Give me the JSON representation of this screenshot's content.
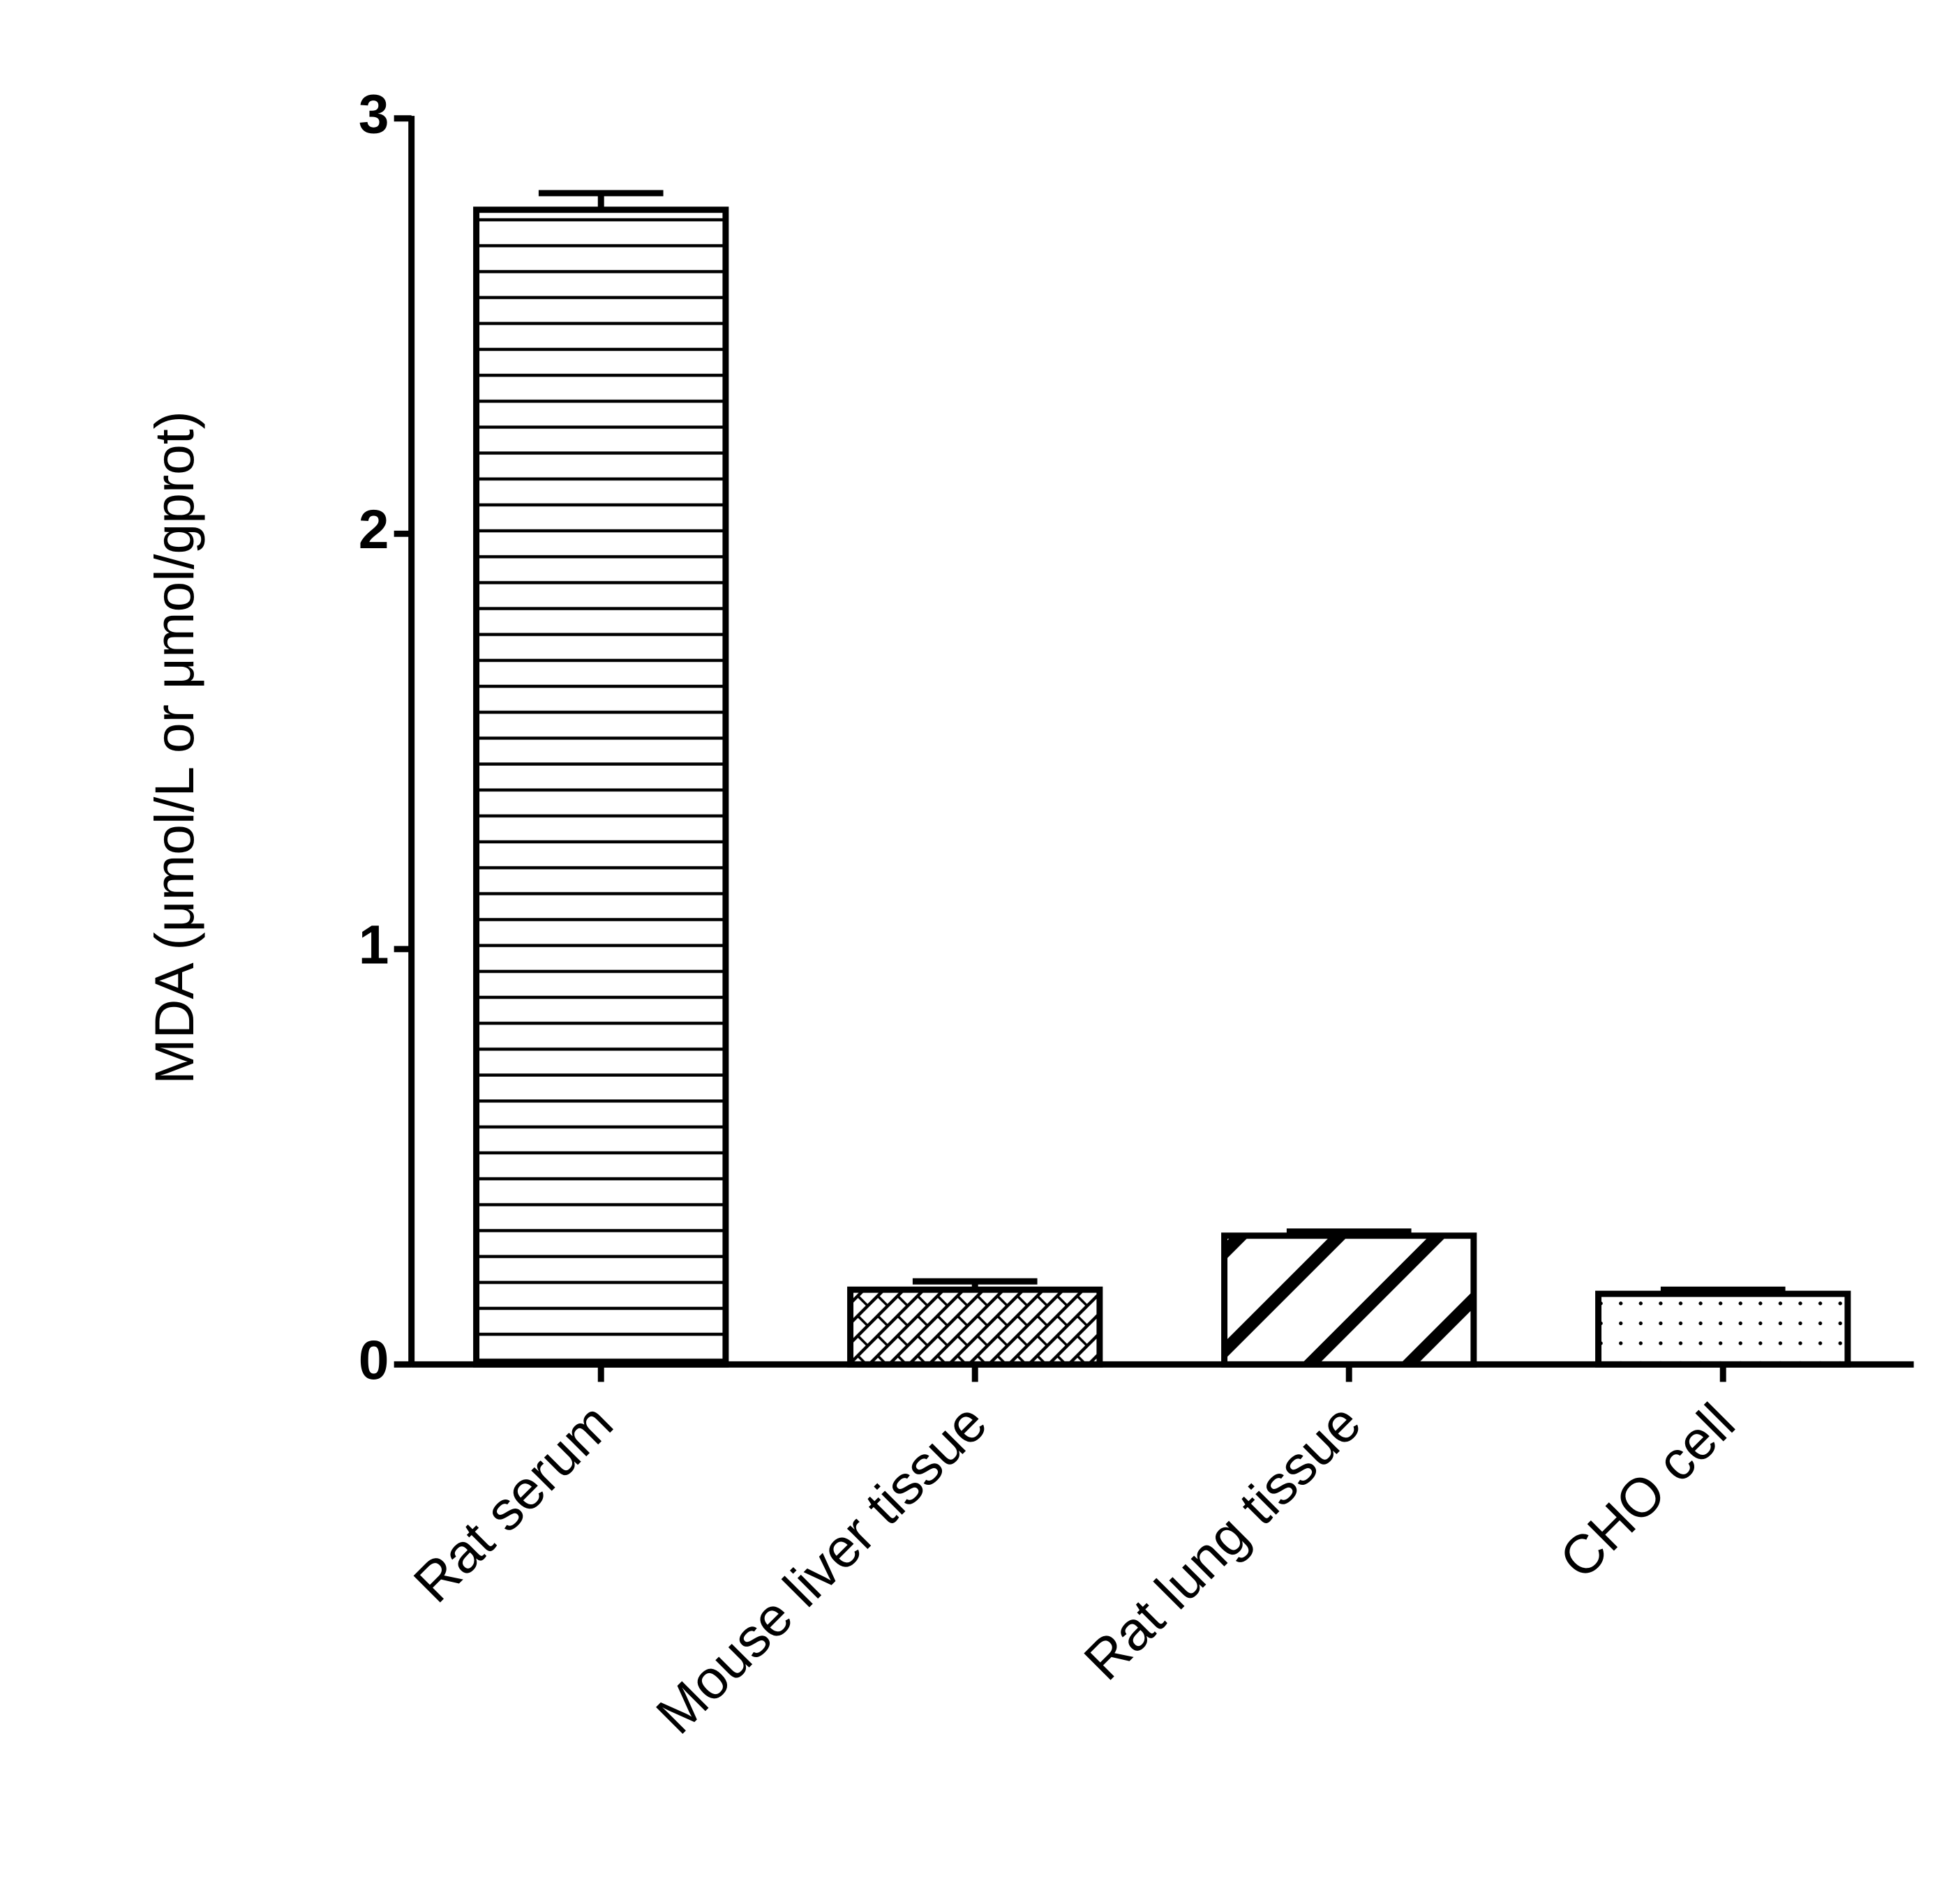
{
  "chart_data": {
    "type": "bar",
    "y_label": "MDA (μmol/L or μmol/gprot)",
    "categories": [
      "Rat serum",
      "Mouse liver tissue",
      "Rat lung tissue",
      "CHO cell"
    ],
    "values": [
      2.78,
      0.18,
      0.31,
      0.17
    ],
    "errors": [
      0.04,
      0.02,
      0.01,
      0.01
    ],
    "fills": [
      "horizontal",
      "crosshatch",
      "diagonal",
      "dots"
    ],
    "color": "#000000",
    "ylim": [
      0,
      3
    ],
    "yticks": [
      0,
      1,
      2,
      3
    ],
    "grid": false
  }
}
